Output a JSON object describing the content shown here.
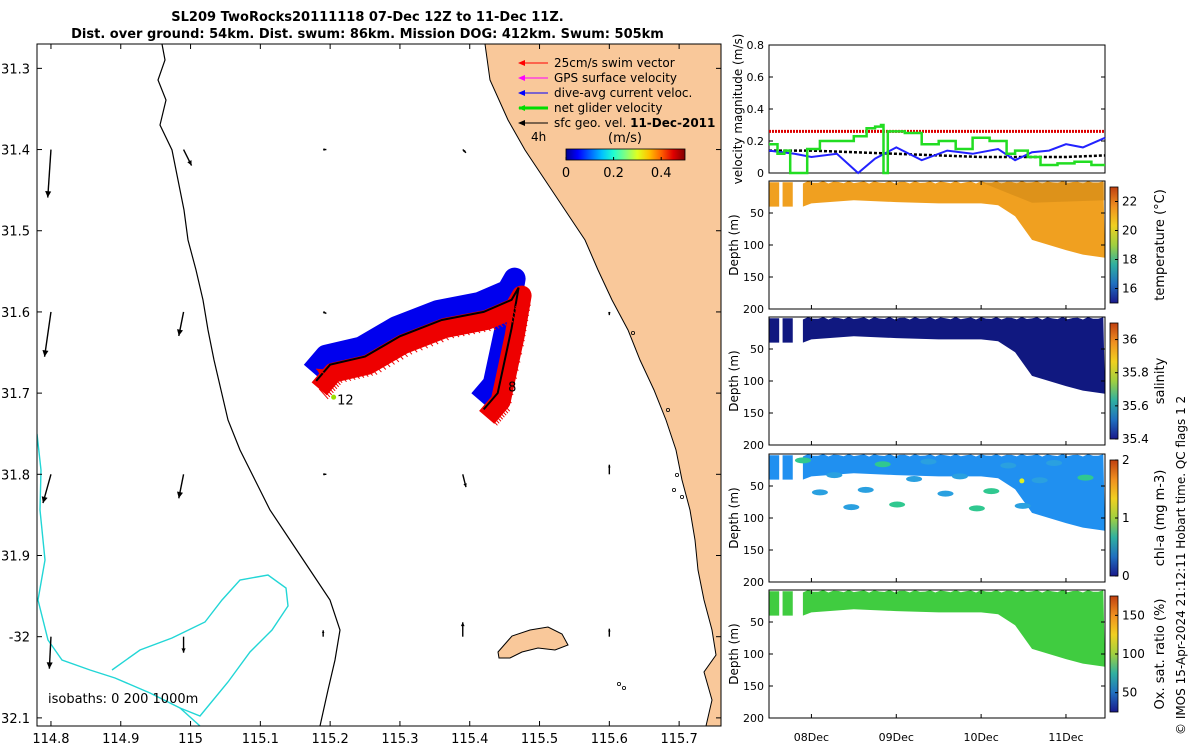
{
  "title": {
    "line1": "SL209 TwoRocks20111118 07-Dec 12Z to 11-Dec 11Z.",
    "line2": "Dist. over ground: 54km. Dist. swum: 86km. Mission DOG: 412km. Swum: 505km"
  },
  "credit": "© IMOS 15-Apr-2024 21:12:11 Hobart time. QC flags 1  2",
  "chart_data": [
    {
      "type": "map",
      "id": "track-map",
      "xlim": [
        114.78,
        115.76
      ],
      "ylim": [
        -32.11,
        -31.27
      ],
      "xticks": [
        114.8,
        114.9,
        115,
        115.1,
        115.2,
        115.3,
        115.4,
        115.5,
        115.6,
        115.7
      ],
      "xtick_labels": [
        "114.8",
        "114.9",
        "115",
        "115.1",
        "115.2",
        "115.3",
        "115.4",
        "115.5",
        "115.6",
        "115.7"
      ],
      "yticks": [
        -31.3,
        -31.4,
        -31.5,
        -31.6,
        -31.7,
        -31.8,
        -31.9,
        -32.0,
        -32.1
      ],
      "ytick_labels": [
        "31.3",
        "31.4",
        "31.5",
        "31.6",
        "31.7",
        "31.8",
        "31.9",
        "-32",
        "32.1"
      ],
      "legend": [
        {
          "label": "25cm/s swim vector",
          "color": "#ff0000"
        },
        {
          "label": "GPS surface velocity",
          "color": "#ff00ff"
        },
        {
          "label": "dive-avg current veloc.",
          "color": "#0000ff"
        },
        {
          "label": "net glider velocity",
          "color": "#00dd00"
        },
        {
          "label_prefix": "sfc geo. vel. ",
          "label_date": "11-Dec-2011",
          "color": "#000000"
        }
      ],
      "legend_note": "4h",
      "colorbar": {
        "label": "(m/s)",
        "ticks": [
          "0",
          "0.2",
          "0.4"
        ],
        "range": [
          0,
          0.5
        ]
      },
      "isobath_label": "isobaths: 0   200  1000m",
      "point_labels": [
        {
          "text": "12",
          "lon": 115.21,
          "lat": -31.714
        },
        {
          "text": "8",
          "lon": 115.455,
          "lat": -31.698
        }
      ],
      "track": [
        [
          115.18,
          -31.685
        ],
        [
          115.2,
          -31.665
        ],
        [
          115.25,
          -31.655
        ],
        [
          115.3,
          -31.63
        ],
        [
          115.36,
          -31.61
        ],
        [
          115.42,
          -31.6
        ],
        [
          115.46,
          -31.585
        ],
        [
          115.47,
          -31.57
        ],
        [
          115.46,
          -31.62
        ],
        [
          115.44,
          -31.7
        ],
        [
          115.42,
          -31.72
        ]
      ],
      "geo_vectors": [
        {
          "lon": 114.8,
          "lat": -31.4,
          "u": -0.02,
          "v": -0.3
        },
        {
          "lon": 114.99,
          "lat": -31.4,
          "u": 0.05,
          "v": -0.1
        },
        {
          "lon": 115.19,
          "lat": -31.4,
          "u": 0.02,
          "v": 0.0
        },
        {
          "lon": 115.39,
          "lat": -31.4,
          "u": 0.02,
          "v": -0.02
        },
        {
          "lon": 114.8,
          "lat": -31.6,
          "u": -0.04,
          "v": -0.28
        },
        {
          "lon": 114.99,
          "lat": -31.6,
          "u": -0.03,
          "v": -0.15
        },
        {
          "lon": 115.19,
          "lat": -31.6,
          "u": 0.02,
          "v": -0.01
        },
        {
          "lon": 115.6,
          "lat": -31.6,
          "u": 0.0,
          "v": -0.02
        },
        {
          "lon": 114.8,
          "lat": -31.8,
          "u": -0.05,
          "v": -0.18
        },
        {
          "lon": 114.99,
          "lat": -31.8,
          "u": -0.03,
          "v": -0.15
        },
        {
          "lon": 115.19,
          "lat": -31.8,
          "u": 0.02,
          "v": 0.0
        },
        {
          "lon": 115.39,
          "lat": -31.8,
          "u": 0.02,
          "v": -0.08
        },
        {
          "lon": 115.6,
          "lat": -31.8,
          "u": 0.0,
          "v": 0.06
        },
        {
          "lon": 114.8,
          "lat": -32.0,
          "u": -0.01,
          "v": -0.2
        },
        {
          "lon": 114.99,
          "lat": -32.0,
          "u": 0.0,
          "v": -0.1
        },
        {
          "lon": 115.19,
          "lat": -32.0,
          "u": 0.0,
          "v": 0.04
        },
        {
          "lon": 115.39,
          "lat": -32.0,
          "u": 0.0,
          "v": 0.09
        },
        {
          "lon": 115.6,
          "lat": -32.0,
          "u": 0.0,
          "v": 0.05
        }
      ]
    },
    {
      "type": "line",
      "id": "velocity",
      "ylabel": "velocity magnitude (m/s)",
      "ylim": [
        0,
        0.8
      ],
      "yticks": [
        0,
        0.2,
        0.4,
        0.6,
        0.8
      ],
      "xlim": [
        7.5,
        11.46
      ],
      "series": [
        {
          "name": "net glider velocity",
          "color": "#22dd22",
          "x": [
            7.5,
            7.6,
            7.68,
            7.75,
            7.85,
            7.95,
            8.1,
            8.3,
            8.5,
            8.65,
            8.75,
            8.82,
            8.85,
            8.9,
            9.1,
            9.3,
            9.5,
            9.7,
            9.9,
            10.1,
            10.3,
            10.4,
            10.55,
            10.7,
            10.9,
            11.1,
            11.3,
            11.46
          ],
          "y": [
            0.18,
            0.12,
            0.14,
            0.0,
            0.0,
            0.15,
            0.2,
            0.2,
            0.23,
            0.28,
            0.29,
            0.3,
            0.0,
            0.26,
            0.25,
            0.18,
            0.2,
            0.15,
            0.22,
            0.2,
            0.12,
            0.14,
            0.1,
            0.05,
            0.06,
            0.07,
            0.05,
            0.05
          ]
        },
        {
          "name": "dive-avg current",
          "color": "#2222ff",
          "x": [
            7.5,
            7.8,
            8.0,
            8.3,
            8.55,
            8.75,
            9.0,
            9.3,
            9.6,
            9.9,
            10.2,
            10.4,
            10.6,
            10.8,
            11.0,
            11.2,
            11.46
          ],
          "y": [
            0.14,
            0.12,
            0.1,
            0.12,
            0.0,
            0.09,
            0.16,
            0.08,
            0.14,
            0.12,
            0.15,
            0.08,
            0.13,
            0.14,
            0.18,
            0.16,
            0.22
          ]
        },
        {
          "name": "sfc geo. vel.",
          "color": "#000000",
          "x": [
            7.5,
            8.0,
            8.5,
            9.0,
            9.5,
            10.0,
            10.5,
            11.0,
            11.46
          ],
          "y": [
            0.14,
            0.14,
            0.13,
            0.12,
            0.11,
            0.1,
            0.1,
            0.1,
            0.11
          ]
        },
        {
          "name": "swim speed",
          "color": "#dd0000",
          "x": [
            7.5,
            11.46
          ],
          "y": [
            0.26,
            0.26
          ]
        }
      ]
    },
    {
      "type": "heatmap",
      "id": "temperature",
      "ylabel": "Depth (m)",
      "colorbar_label": "temperature (°C)",
      "crange": [
        15,
        23
      ],
      "cticks": [
        16,
        18,
        20,
        22
      ],
      "ylim": [
        0,
        200
      ],
      "yticks": [
        0,
        50,
        100,
        150,
        200
      ],
      "colorstops": [
        [
          0,
          "#c58a10"
        ],
        [
          1,
          "#f2a020"
        ]
      ],
      "surface_value": 21.8
    },
    {
      "type": "heatmap",
      "id": "salinity",
      "ylabel": "Depth (m)",
      "colorbar_label": "salinity",
      "crange": [
        35.4,
        36.1
      ],
      "cticks": [
        35.4,
        35.6,
        35.8,
        36
      ],
      "ylim": [
        0,
        200
      ],
      "yticks": [
        0,
        50,
        100,
        150,
        200
      ],
      "surface_value": 35.4
    },
    {
      "type": "heatmap",
      "id": "chla",
      "ylabel": "Depth (m)",
      "colorbar_label": "chl-a (mg m-3)",
      "crange": [
        0,
        2
      ],
      "cticks": [
        0,
        1,
        2
      ],
      "ylim": [
        0,
        200
      ],
      "yticks": [
        0,
        50,
        100,
        150,
        200
      ],
      "surface_value": 0.6
    },
    {
      "type": "heatmap",
      "id": "oxygen",
      "ylabel": "Depth (m)",
      "colorbar_label": "Ox. sat. ratio (%)",
      "crange": [
        25,
        175
      ],
      "cticks": [
        50,
        100,
        150
      ],
      "ylim": [
        0,
        200
      ],
      "yticks": [
        0,
        50,
        100,
        150,
        200
      ],
      "surface_value": 112
    }
  ],
  "time_axis": {
    "xlim": [
      7.5,
      11.46
    ],
    "ticks": [
      8,
      9,
      10,
      11
    ],
    "tick_labels": [
      "08Dec",
      "09Dec",
      "10Dec",
      "11Dec"
    ]
  },
  "section_bottom": [
    [
      7.5,
      40
    ],
    [
      7.9,
      40
    ],
    [
      8.0,
      35
    ],
    [
      8.5,
      30
    ],
    [
      9.0,
      33
    ],
    [
      9.5,
      35
    ],
    [
      10.0,
      35
    ],
    [
      10.2,
      38
    ],
    [
      10.4,
      55
    ],
    [
      10.6,
      92
    ],
    [
      10.8,
      100
    ],
    [
      11.0,
      108
    ],
    [
      11.2,
      115
    ],
    [
      11.46,
      120
    ]
  ]
}
